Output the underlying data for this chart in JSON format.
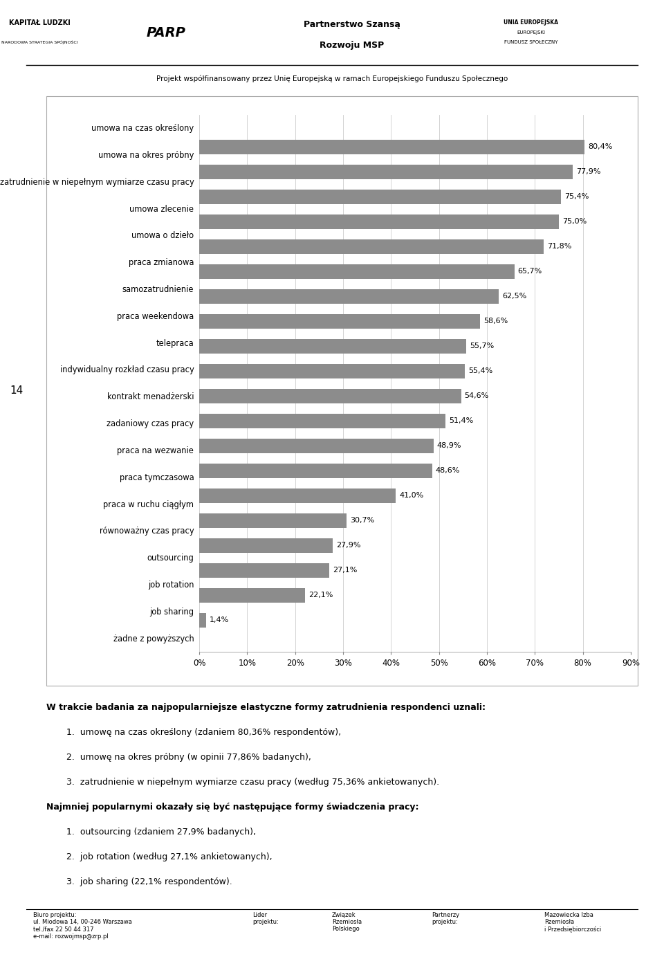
{
  "categories": [
    "umowa na czas określony",
    "umowa na okres próbny",
    "zatrudnienie w niepełnym wymiarze czasu pracy",
    "umowa zlecenie",
    "umowa o dzieło",
    "praca zmianowa",
    "samozatrudnienie",
    "praca weekendowa",
    "telepraca",
    "indywidualny rozkład czasu pracy",
    "kontrakt menadżerski",
    "zadaniowy czas pracy",
    "praca na wezwanie",
    "praca tymczasowa",
    "praca w ruchu ciągłym",
    "równoważny czas pracy",
    "outsourcing",
    "job rotation",
    "job sharing",
    "żadne z powyższych"
  ],
  "values": [
    80.4,
    77.9,
    75.4,
    75.0,
    71.8,
    65.7,
    62.5,
    58.6,
    55.7,
    55.4,
    54.6,
    51.4,
    48.9,
    48.6,
    41.0,
    30.7,
    27.9,
    27.1,
    22.1,
    1.4
  ],
  "labels": [
    "80,4%",
    "77,9%",
    "75,4%",
    "75,0%",
    "71,8%",
    "65,7%",
    "62,5%",
    "58,6%",
    "55,7%",
    "55,4%",
    "54,6%",
    "51,4%",
    "48,9%",
    "48,6%",
    "41,0%",
    "30,7%",
    "27,9%",
    "27,1%",
    "22,1%",
    "1,4%"
  ],
  "bar_color": "#8c8c8c",
  "background_color": "#ffffff",
  "xlim": [
    0,
    90
  ],
  "xticks": [
    0,
    10,
    20,
    30,
    40,
    50,
    60,
    70,
    80,
    90
  ],
  "xtick_labels": [
    "0%",
    "10%",
    "20%",
    "30%",
    "40%",
    "50%",
    "60%",
    "70%",
    "80%",
    "90%"
  ],
  "header_text": "Projekt współfinansowany przez Unię Europejską w ramach Europejskiego Funduszu Społecznego",
  "page_number": "14",
  "body_line0": "W trakcie badania za najpopularniejsze elastyczne formy zatrudnienia respondenci uznali:",
  "body_line1": "1.  umowę na czas określony (zdaniem 80,36% respondentów),",
  "body_line2": "2.  umowę na okres próbny (w opinii 77,86% badanych),",
  "body_line3": "3.  zatrudnienie w niepełnym wymiarze czasu pracy (według 75,36% ankietowanych).",
  "body_line4": "Najmniej popularnymi okazały się być następujące formy świadczenia pracy:",
  "body_line5": "1.  outsourcing (zdaniem 27,9% badanych),",
  "body_line6": "2.  job rotation (według 27,1% ankietowanych),",
  "body_line7": "3.  job sharing (22,1% respondentów).",
  "footer_left": "Biuro projektu:\nul. Miodowa 14, 00-246 Warszawa\ntel./fax 22 50 44 317\ne-mail: rozwojmsp@zrp.pl",
  "footer_lider": "Lider\nprojektu:",
  "footer_zwiazek": "Związek\nRzemiosła\nPolskiego",
  "footer_partnerzy": "Partnerzy\nprojektu:",
  "footer_mazowiecka": "Mazowiecka Izba\nRzemiosła\ni Przedsiębiorczości"
}
